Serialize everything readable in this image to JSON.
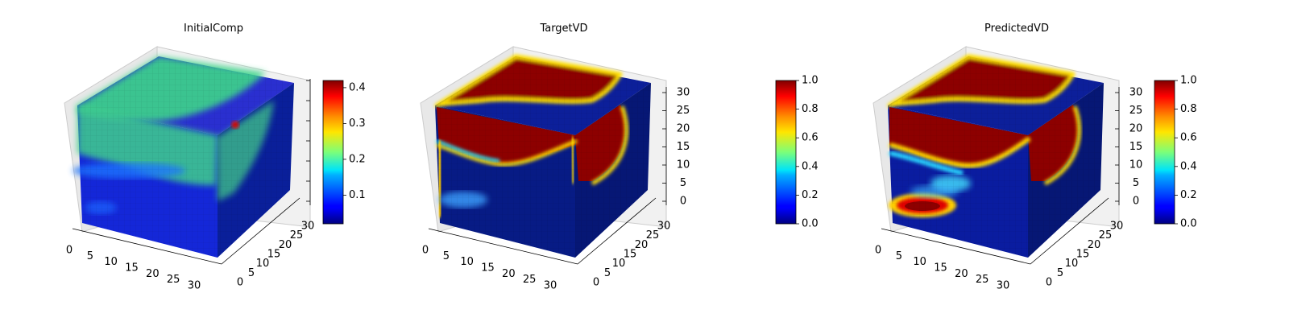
{
  "figure": {
    "panels": [
      {
        "title": "InitialComp"
      },
      {
        "title": "TargetVD"
      },
      {
        "title": "PredictedVD"
      }
    ]
  },
  "chart_data": [
    {
      "type": "heatmap",
      "subtype": "3d-voxel",
      "title": "InitialComp",
      "colormap": "jet",
      "x_ticks": [
        "0",
        "5",
        "10",
        "15",
        "20",
        "25",
        "30"
      ],
      "y_ticks": [
        "0",
        "5",
        "10",
        "15",
        "20",
        "25",
        "30"
      ],
      "z_ticks": [],
      "colorbar": {
        "range": [
          0.02,
          0.42
        ],
        "ticks": [
          "0.1",
          "0.2",
          "0.3",
          "0.4"
        ]
      },
      "description_values": {
        "top_face_level": 0.22,
        "background_level": 0.05,
        "hotspot_level": 0.4
      }
    },
    {
      "type": "heatmap",
      "subtype": "3d-voxel",
      "title": "TargetVD",
      "colormap": "jet",
      "x_ticks": [
        "0",
        "5",
        "10",
        "15",
        "20",
        "25",
        "30"
      ],
      "y_ticks": [
        "0",
        "5",
        "10",
        "15",
        "20",
        "25",
        "30"
      ],
      "z_ticks": [
        "0",
        "5",
        "10",
        "15",
        "20",
        "25",
        "30"
      ],
      "colorbar": {
        "range": [
          0.0,
          1.0
        ],
        "ticks": [
          "0.0",
          "0.2",
          "0.4",
          "0.6",
          "0.8",
          "1.0"
        ]
      }
    },
    {
      "type": "heatmap",
      "subtype": "3d-voxel",
      "title": "PredictedVD",
      "colormap": "jet",
      "x_ticks": [
        "0",
        "5",
        "10",
        "15",
        "20",
        "25",
        "30"
      ],
      "y_ticks": [
        "0",
        "5",
        "10",
        "15",
        "20",
        "25",
        "30"
      ],
      "z_ticks": [
        "0",
        "5",
        "10",
        "15",
        "20",
        "25",
        "30"
      ],
      "colorbar": {
        "range": [
          0.0,
          1.0
        ],
        "ticks": [
          "0.0",
          "0.2",
          "0.4",
          "0.6",
          "0.8",
          "1.0"
        ]
      }
    }
  ]
}
